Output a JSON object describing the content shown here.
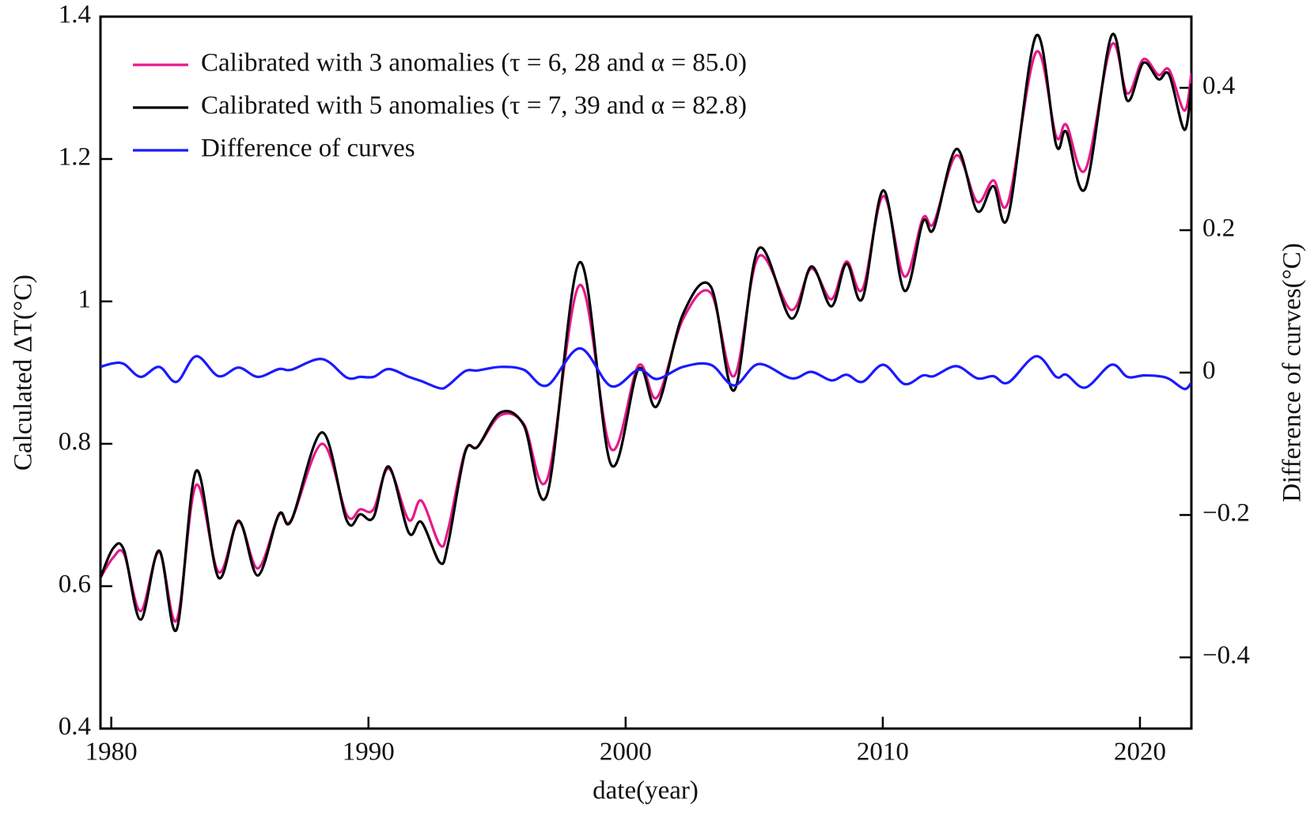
{
  "chart_data": {
    "type": "line",
    "xlabel": "date(year)",
    "ylabel": "Calculated ΔT(°C)",
    "y2label": "Difference of curves(°C)",
    "legend": "upper left",
    "xlim": [
      1979.58,
      2022.0
    ],
    "xticks": [
      1980,
      1990,
      2000,
      2010,
      2020
    ],
    "ylim": [
      0.4,
      1.4
    ],
    "yticks": [
      0.4,
      0.6,
      0.8,
      1,
      1.2,
      1.4
    ],
    "y2lim": [
      -0.5,
      0.5
    ],
    "y2ticks": [
      {
        "value": -0.4,
        "label": "−0.4"
      },
      {
        "value": -0.2,
        "label": "−0.2"
      },
      0,
      0.2,
      0.4
    ],
    "x": [
      1979.58,
      1980.07,
      1980.5,
      1981.14,
      1981.86,
      1982.54,
      1983.3,
      1984.17,
      1984.95,
      1985.7,
      1986.52,
      1987.0,
      1988.2,
      1989.16,
      1989.68,
      1990.2,
      1990.79,
      1991.57,
      1992.06,
      1992.78,
      1993.1,
      1993.76,
      1994.25,
      1995.13,
      1996.04,
      1996.95,
      1998.22,
      1999.43,
      2000.5,
      2001.22,
      2002.23,
      2003.31,
      2004.22,
      2005.17,
      2006.44,
      2007.22,
      2008.0,
      2008.59,
      2009.21,
      2010.02,
      2010.84,
      2011.56,
      2011.98,
      2012.86,
      2013.67,
      2014.3,
      2014.88,
      2015.96,
      2016.74,
      2017.14,
      2017.88,
      2018.89,
      2019.51,
      2020.13,
      2020.72,
      2021.14,
      2021.73,
      2022.0
    ],
    "series": [
      {
        "name": "Calibrated with 3 anomalies (τ = 6, 28 and α = 85.0)",
        "color": "#e6198a",
        "values": [
          0.612,
          0.64,
          0.645,
          0.565,
          0.648,
          0.552,
          0.742,
          0.62,
          0.69,
          0.625,
          0.7,
          0.693,
          0.8,
          0.7,
          0.708,
          0.708,
          0.765,
          0.693,
          0.72,
          0.658,
          0.68,
          0.79,
          0.796,
          0.84,
          0.828,
          0.75,
          1.023,
          0.793,
          0.91,
          0.865,
          0.975,
          1.012,
          0.895,
          1.063,
          0.988,
          1.046,
          1.003,
          1.056,
          1.017,
          1.148,
          1.035,
          1.117,
          1.11,
          1.205,
          1.14,
          1.17,
          1.14,
          1.35,
          1.232,
          1.248,
          1.185,
          1.36,
          1.292,
          1.34,
          1.318,
          1.325,
          1.268,
          1.32
        ]
      },
      {
        "name": "Calibrated with 5 anomalies (τ = 7, 39 and α = 82.8)",
        "color": "#000000",
        "values": [
          0.612,
          0.653,
          0.65,
          0.553,
          0.65,
          0.539,
          0.762,
          0.612,
          0.692,
          0.615,
          0.701,
          0.692,
          0.816,
          0.692,
          0.701,
          0.697,
          0.768,
          0.675,
          0.69,
          0.633,
          0.66,
          0.788,
          0.796,
          0.844,
          0.826,
          0.729,
          1.055,
          0.771,
          0.905,
          0.853,
          0.982,
          1.021,
          0.875,
          1.074,
          0.976,
          1.049,
          0.993,
          1.053,
          1.004,
          1.156,
          1.015,
          1.112,
          1.102,
          1.214,
          1.127,
          1.162,
          1.12,
          1.373,
          1.22,
          1.238,
          1.159,
          1.373,
          1.282,
          1.335,
          1.312,
          1.318,
          1.241,
          1.306
        ]
      },
      {
        "name": "Difference of curves",
        "color": "#1a1aff",
        "axis": "y2",
        "values": [
          0.008,
          0.013,
          0.012,
          -0.006,
          0.008,
          -0.013,
          0.023,
          -0.005,
          0.007,
          -0.006,
          0.005,
          0.004,
          0.019,
          -0.007,
          -0.006,
          -0.006,
          0.005,
          -0.006,
          -0.012,
          -0.022,
          -0.018,
          0.002,
          0.003,
          0.008,
          0.004,
          -0.018,
          0.034,
          -0.019,
          0.004,
          -0.009,
          0.008,
          0.011,
          -0.018,
          0.012,
          -0.008,
          0.001,
          -0.011,
          -0.003,
          -0.013,
          0.011,
          -0.016,
          -0.004,
          -0.005,
          0.009,
          -0.008,
          -0.005,
          -0.014,
          0.023,
          -0.006,
          -0.003,
          -0.021,
          0.011,
          -0.006,
          -0.004,
          -0.005,
          -0.009,
          -0.023,
          -0.014
        ]
      }
    ]
  }
}
